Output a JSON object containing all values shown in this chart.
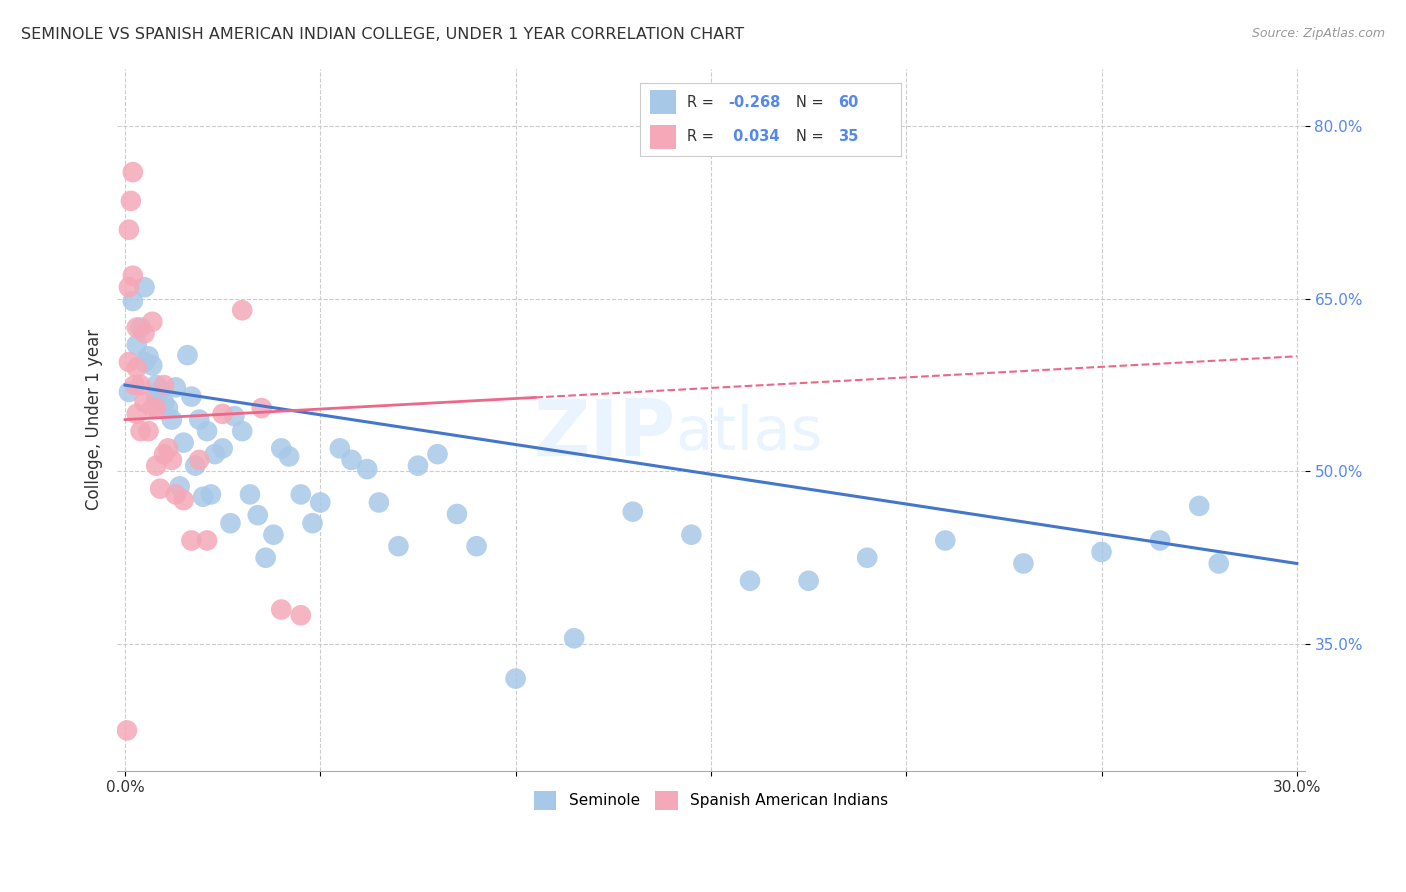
{
  "title": "SEMINOLE VS SPANISH AMERICAN INDIAN COLLEGE, UNDER 1 YEAR CORRELATION CHART",
  "source": "Source: ZipAtlas.com",
  "ylabel": "College, Under 1 year",
  "blue_color": "#a8c8e8",
  "pink_color": "#f4a8b8",
  "line_blue": "#4477cc",
  "line_pink": "#ee6688",
  "background": "#ffffff",
  "tick_color": "#5588ee",
  "grid_color": "#cccccc",
  "seminole_x": [
    0.001,
    0.002,
    0.003,
    0.004,
    0.005,
    0.005,
    0.006,
    0.007,
    0.008,
    0.008,
    0.009,
    0.01,
    0.011,
    0.012,
    0.013,
    0.014,
    0.015,
    0.016,
    0.017,
    0.018,
    0.019,
    0.02,
    0.021,
    0.022,
    0.023,
    0.025,
    0.027,
    0.028,
    0.03,
    0.032,
    0.034,
    0.036,
    0.038,
    0.04,
    0.042,
    0.045,
    0.048,
    0.05,
    0.055,
    0.058,
    0.062,
    0.065,
    0.07,
    0.075,
    0.08,
    0.085,
    0.09,
    0.1,
    0.115,
    0.13,
    0.145,
    0.16,
    0.175,
    0.19,
    0.21,
    0.23,
    0.25,
    0.265,
    0.275,
    0.28
  ],
  "seminole_y": [
    0.569,
    0.648,
    0.61,
    0.625,
    0.66,
    0.595,
    0.6,
    0.592,
    0.565,
    0.575,
    0.57,
    0.56,
    0.555,
    0.545,
    0.573,
    0.487,
    0.525,
    0.601,
    0.565,
    0.505,
    0.545,
    0.478,
    0.535,
    0.48,
    0.515,
    0.52,
    0.455,
    0.548,
    0.535,
    0.48,
    0.462,
    0.425,
    0.445,
    0.52,
    0.513,
    0.48,
    0.455,
    0.473,
    0.52,
    0.51,
    0.502,
    0.473,
    0.435,
    0.505,
    0.515,
    0.463,
    0.435,
    0.32,
    0.355,
    0.465,
    0.445,
    0.405,
    0.405,
    0.425,
    0.44,
    0.42,
    0.43,
    0.44,
    0.47,
    0.42
  ],
  "spanish_x": [
    0.0005,
    0.001,
    0.001,
    0.001,
    0.0015,
    0.002,
    0.002,
    0.0025,
    0.003,
    0.003,
    0.003,
    0.004,
    0.004,
    0.005,
    0.005,
    0.006,
    0.007,
    0.007,
    0.008,
    0.008,
    0.009,
    0.01,
    0.01,
    0.011,
    0.012,
    0.013,
    0.015,
    0.017,
    0.019,
    0.021,
    0.025,
    0.03,
    0.035,
    0.04,
    0.045
  ],
  "spanish_y": [
    0.275,
    0.595,
    0.66,
    0.71,
    0.735,
    0.67,
    0.76,
    0.575,
    0.55,
    0.59,
    0.625,
    0.535,
    0.575,
    0.56,
    0.62,
    0.535,
    0.555,
    0.63,
    0.555,
    0.505,
    0.485,
    0.515,
    0.575,
    0.52,
    0.51,
    0.48,
    0.475,
    0.44,
    0.51,
    0.44,
    0.55,
    0.64,
    0.555,
    0.38,
    0.375
  ],
  "x_min": 0.0,
  "x_max": 0.3,
  "y_min": 0.24,
  "y_max": 0.85,
  "y_ticks": [
    0.8,
    0.65,
    0.5,
    0.35
  ],
  "y_tick_labels": [
    "80.0%",
    "65.0%",
    "50.0%",
    "35.0%"
  ],
  "x_tick_positions": [
    0.0,
    0.05,
    0.1,
    0.15,
    0.2,
    0.25,
    0.3
  ],
  "legend_r1": "-0.268",
  "legend_n1": "60",
  "legend_r2": "0.034",
  "legend_n2": "35"
}
